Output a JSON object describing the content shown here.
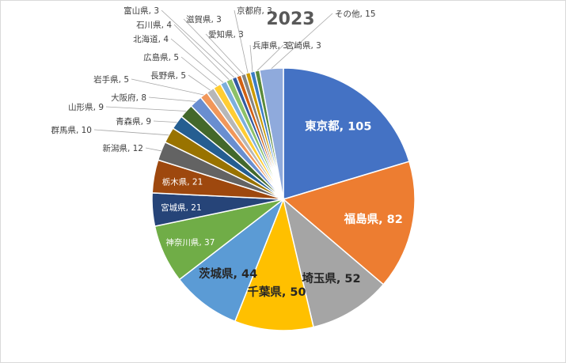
{
  "chart_data": {
    "type": "pie",
    "title": "2023",
    "categories": [
      "東京都",
      "福島県",
      "埼玉県",
      "千葉県",
      "茨城県",
      "神奈川県",
      "宮城県",
      "栃木県",
      "新潟県",
      "群馬県",
      "青森県",
      "山形県",
      "大阪府",
      "岩手県",
      "長野県",
      "広島県",
      "北海道",
      "石川県",
      "富山県",
      "滋賀県",
      "愛知県",
      "京都府",
      "兵庫県",
      "宮崎県",
      "その他"
    ],
    "values": [
      105,
      82,
      52,
      50,
      44,
      37,
      21,
      21,
      12,
      10,
      9,
      9,
      8,
      5,
      5,
      5,
      4,
      4,
      3,
      3,
      3,
      3,
      3,
      3,
      15
    ],
    "labels": [
      "東京都, 105",
      "福島県, 82",
      "埼玉県, 52",
      "千葉県, 50",
      "茨城県, 44",
      "神奈川県, 37",
      "宮城県, 21",
      "栃木県, 21",
      "新潟県, 12",
      "群馬県, 10",
      "青森県, 9",
      "山形県, 9",
      "大阪府, 8",
      "岩手県, 5",
      "長野県, 5",
      "広島県, 5",
      "北海道, 4",
      "石川県, 4",
      "富山県, 3",
      "滋賀県, 3",
      "愛知県, 3",
      "京都府, 3",
      "兵庫県, 3",
      "宮崎県, 3",
      "その他, 15"
    ],
    "colors": [
      "#4472c4",
      "#ed7d31",
      "#a5a5a5",
      "#ffc000",
      "#5b9bd5",
      "#70ad47",
      "#264478",
      "#9e480e",
      "#636363",
      "#997300",
      "#255e91",
      "#43682b",
      "#698ed0",
      "#f1975a",
      "#b7b7b7",
      "#ffcd33",
      "#7cafdd",
      "#8cc168",
      "#335aa1",
      "#d26012",
      "#848484",
      "#cc9a00",
      "#3c7dc4",
      "#5a8a39",
      "#8faadc"
    ],
    "legend": "none"
  }
}
